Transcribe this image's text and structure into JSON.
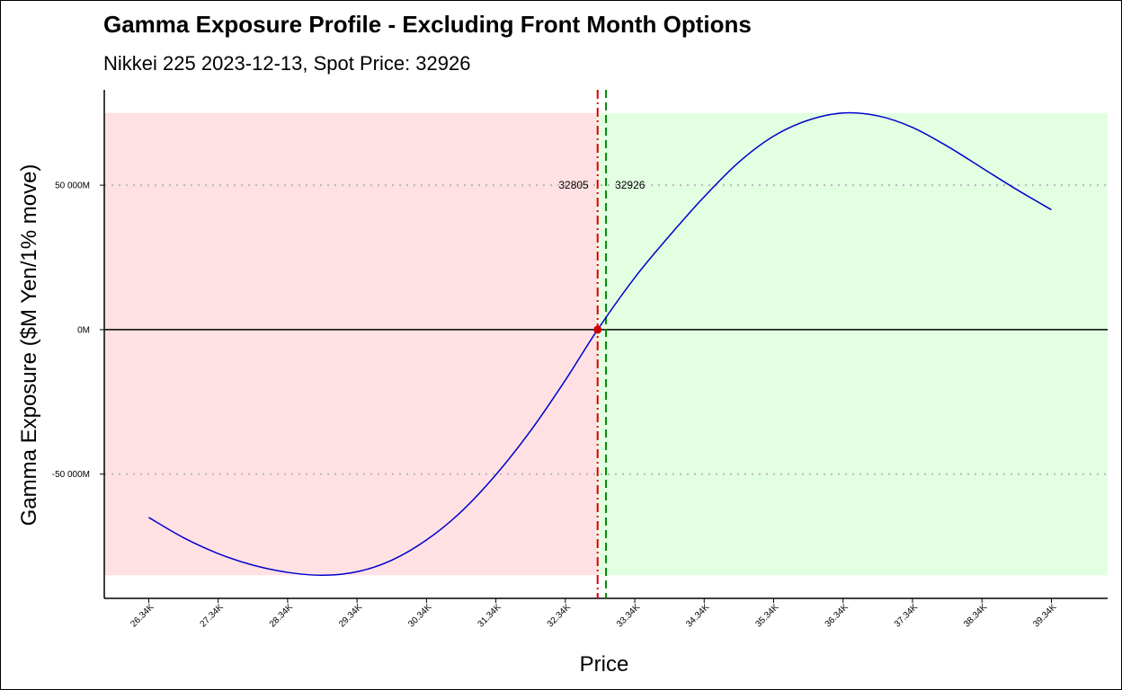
{
  "chart_data": {
    "type": "line",
    "title": "Gamma Exposure Profile - Excluding Front Month Options",
    "subtitle": "Nikkei 225 2023-12-13, Spot Price: 32926",
    "xlabel": "Price",
    "ylabel": "Gamma Exposure ($M Yen/1% move)",
    "x_tick_labels": [
      "26.34K",
      "27.34K",
      "28.34K",
      "29.34K",
      "30.34K",
      "31.34K",
      "32.34K",
      "33.34K",
      "34.34K",
      "35.34K",
      "36.34K",
      "37.34K",
      "38.34K",
      "39.34K"
    ],
    "x_tick_values": [
      26340,
      27340,
      28340,
      29340,
      30340,
      31340,
      32340,
      33340,
      34340,
      35340,
      36340,
      37340,
      38340,
      39340
    ],
    "y_tick_labels": [
      "-50 000M",
      "0M",
      "50 000M"
    ],
    "y_tick_values": [
      -50000,
      0,
      50000
    ],
    "xlim": [
      25700,
      40150
    ],
    "ylim": [
      -93000,
      83000
    ],
    "grid": "horizontal dotted at y ticks",
    "series": [
      {
        "color": "#0000CC",
        "points": [
          [
            26340,
            -65000
          ],
          [
            26840,
            -72000
          ],
          [
            27340,
            -77500
          ],
          [
            27840,
            -81500
          ],
          [
            28340,
            -84000
          ],
          [
            28840,
            -85000
          ],
          [
            29340,
            -83800
          ],
          [
            29840,
            -79800
          ],
          [
            30340,
            -72800
          ],
          [
            30840,
            -63000
          ],
          [
            31340,
            -50200
          ],
          [
            31840,
            -35000
          ],
          [
            32340,
            -17500
          ],
          [
            32805,
            0
          ],
          [
            33340,
            18000
          ],
          [
            33840,
            32500
          ],
          [
            34340,
            46000
          ],
          [
            34840,
            58000
          ],
          [
            35340,
            67000
          ],
          [
            35840,
            72500
          ],
          [
            36340,
            75000
          ],
          [
            36840,
            74000
          ],
          [
            37340,
            70000
          ],
          [
            37840,
            63500
          ],
          [
            38340,
            56000
          ],
          [
            38840,
            48500
          ],
          [
            39340,
            41500
          ]
        ]
      }
    ],
    "regions": [
      {
        "from": 25700,
        "to": 32805,
        "ymin": -85000,
        "ymax": 75000,
        "color": "#FFE1E4"
      },
      {
        "from": 32805,
        "to": 40150,
        "ymin": -85000,
        "ymax": 75000,
        "color": "#E2FFE2"
      }
    ],
    "vlines": [
      {
        "x": 32805,
        "label": "32805",
        "color": "#DD0000",
        "style": "dashdot"
      },
      {
        "x": 32926,
        "label": "32926",
        "color": "#008800",
        "style": "dashed"
      }
    ],
    "zero_crossing": {
      "x": 32805,
      "y": 0,
      "color": "#CC0000"
    }
  }
}
